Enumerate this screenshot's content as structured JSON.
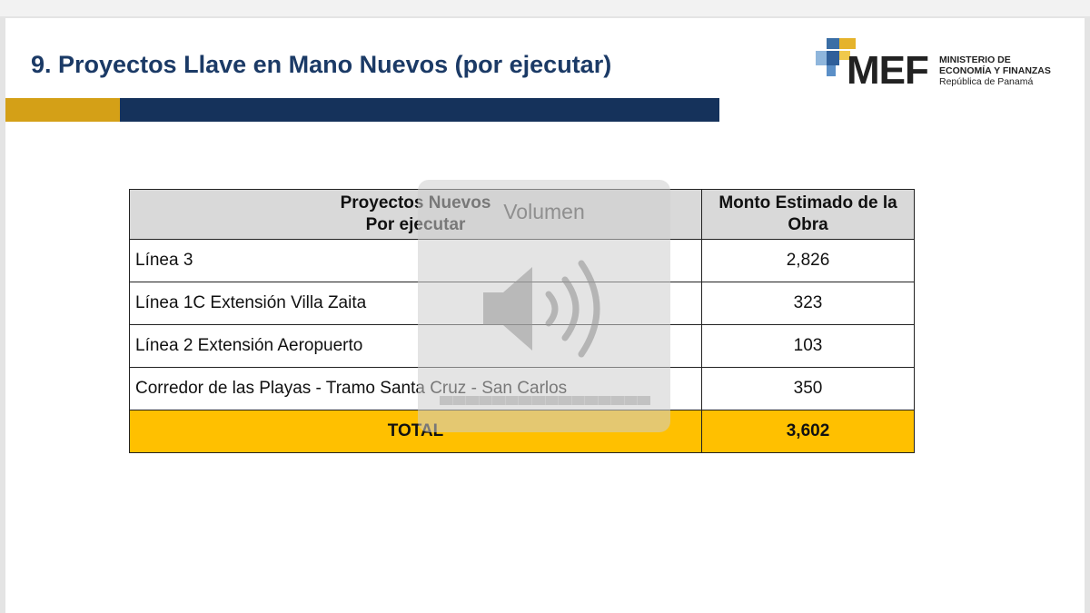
{
  "slide": {
    "title": "9. Proyectos Llave en Mano Nuevos (por ejecutar)"
  },
  "logo": {
    "acronym": "MEF",
    "line1": "MINISTERIO DE",
    "line2": "ECONOMÍA Y FINANZAS",
    "line3": "República de Panamá"
  },
  "table": {
    "header_projects_line1": "Proyectos Nuevos",
    "header_projects_line2": "Por ejecutar",
    "header_amount_line1": "Monto Estimado de la",
    "header_amount_line2": "Obra",
    "rows": [
      {
        "name": "Línea 3",
        "amount": "2,826"
      },
      {
        "name": "Línea 1C Extensión Villa Zaita",
        "amount": "323"
      },
      {
        "name": "Línea 2 Extensión Aeropuerto",
        "amount": "103"
      },
      {
        "name": "Corredor de las Playas - Tramo Santa Cruz - San Carlos",
        "amount": "350"
      }
    ],
    "total_label": "TOTAL",
    "total_amount": "3,602"
  },
  "volume_overlay": {
    "label": "Volumen",
    "icon": "speaker-icon",
    "level_fraction": 0.5
  },
  "colors": {
    "title": "#1b3a66",
    "bar_gold": "#d4a017",
    "bar_navy": "#15325b",
    "header_bg": "#d9d9d9",
    "total_bg": "#ffc000"
  }
}
